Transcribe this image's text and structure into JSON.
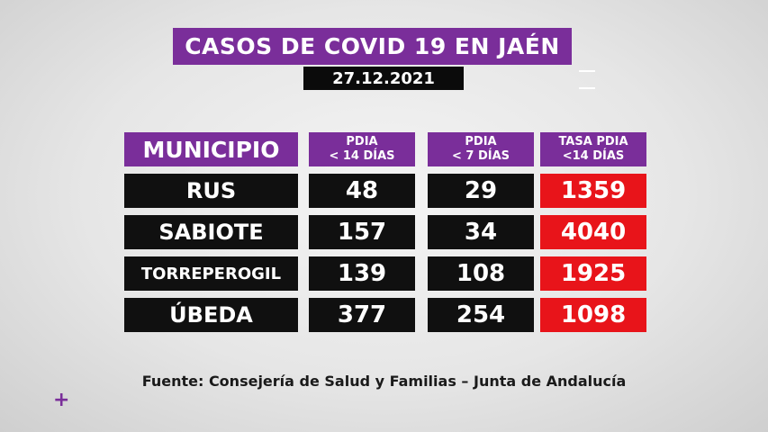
{
  "title": "CASOS DE COVID 19 EN JAÉN",
  "date": "27.12.2021",
  "table": {
    "headers": {
      "municipio": "MUNICIPIO",
      "pdia14_line1": "PDIA",
      "pdia14_line2": "< 14 DÍAS",
      "pdia7_line1": "PDIA",
      "pdia7_line2": "< 7 DÍAS",
      "tasa_line1": "TASA PDIA",
      "tasa_line2": "<14 DÍAS"
    },
    "rows": [
      {
        "municipio": "RUS",
        "pdia14": "48",
        "pdia7": "29",
        "tasa": "1359"
      },
      {
        "municipio": "SABIOTE",
        "pdia14": "157",
        "pdia7": "34",
        "tasa": "4040"
      },
      {
        "municipio": "TORREPEROGIL",
        "pdia14": "139",
        "pdia7": "108",
        "tasa": "1925"
      },
      {
        "municipio": "ÚBEDA",
        "pdia14": "377",
        "pdia7": "254",
        "tasa": "1098"
      }
    ]
  },
  "source": "Fuente: Consejería de Salud y Familias – Junta de Andalucía",
  "plus_symbol": "+",
  "colors": {
    "purple": "#7a2e9a",
    "black": "#101010",
    "red": "#e8141a"
  }
}
